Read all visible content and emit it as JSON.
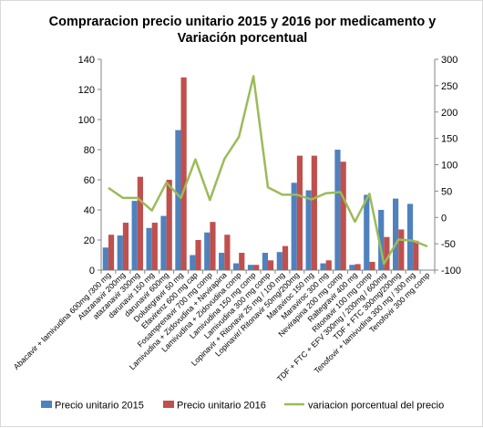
{
  "chart_data": {
    "type": "bar",
    "title_lines": [
      "Compraracion precio unitario 2015 y 2016 por medicamento y",
      "Variación porcentual"
    ],
    "categories": [
      "Abacavir + lamivudina 600mg /300 mg",
      "Atazanavir 200mg",
      "atazanavir 300mg",
      "darunavir 150 mg",
      "darunavir 600mg",
      "Dolutegravir 50 mg",
      "Efavirenz 600 mg cap",
      "Fosamprenavir 700 mg comp",
      "Lamivudina + Zidovudina + Nevirapina",
      "Lamivudina + Zidovudina comp",
      "Lamivudina 150 mg comp",
      "Lamivudina 300 mg comp",
      "Lopinavir + Ritonavir 25 mg / 100 mg",
      "Lopinavir/ Ritonavir 50mg/200mg",
      "Maraviroc 150 mg",
      "Maraviroc 300 mg",
      "Nevirapina 200 mg comp",
      "Raltegravir 400 mg",
      "Ritonavir 100 mg comp",
      "TDF + FTC + EFV 300mg / 200mg / 600mg",
      "TDF + FTC 300mg/200mg",
      "Tenofovir + lamivudina 300 mg / 300 mg",
      "Tenofovir 300 mg comp"
    ],
    "series": [
      {
        "name": "Precio unitario 2015",
        "color": "#4f81bd",
        "axis": "left",
        "kind": "bar",
        "values": [
          15,
          23,
          46,
          28,
          36,
          93,
          10,
          25,
          11.5,
          4.5,
          3.5,
          11.5,
          12,
          58,
          53,
          4.5,
          80,
          3.5,
          50,
          40,
          47.5,
          44,
          0
        ]
      },
      {
        "name": "Precio unitario 2016",
        "color": "#c0504d",
        "axis": "left",
        "kind": "bar",
        "values": [
          23.5,
          31.5,
          62,
          31.5,
          60,
          128,
          20,
          32,
          23.5,
          11.5,
          3.5,
          6.5,
          16,
          76,
          76,
          6.5,
          72,
          4,
          5.5,
          22,
          27,
          19.5,
          0
        ]
      },
      {
        "name": "variacion porcentual del precio",
        "color": "#9bbb59",
        "axis": "right",
        "kind": "line",
        "values": [
          56,
          37,
          37,
          13,
          66,
          37,
          110,
          33,
          111,
          153,
          268,
          57,
          43,
          43,
          34,
          46,
          48,
          -8,
          45,
          -88,
          -42,
          -44,
          -55
        ]
      }
    ],
    "y_left": {
      "min": 0,
      "max": 140,
      "step": 20,
      "ticks": [
        "0",
        "20",
        "40",
        "60",
        "80",
        "100",
        "120",
        "140"
      ]
    },
    "y_right": {
      "min": -100,
      "max": 300,
      "step": 50,
      "ticks": [
        "-100",
        "-50",
        "0",
        "50",
        "100",
        "150",
        "200",
        "250",
        "300"
      ]
    },
    "legend_position": "bottom",
    "grid": false
  }
}
